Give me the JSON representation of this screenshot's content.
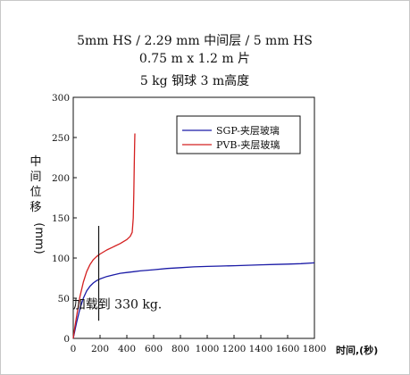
{
  "chart_data": {
    "type": "line",
    "title_lines": [
      "5mm HS / 2.29 mm 中间层 / 5 mm HS",
      "0.75 m x 1.2 m  片",
      "5 kg 钢球 3 m高度"
    ],
    "xlabel": "时间,(秒)",
    "ylabel_chars": [
      "中",
      "间",
      "位",
      "移"
    ],
    "ylabel_unit": "(mm)",
    "xlim": [
      0,
      1800
    ],
    "ylim": [
      0,
      300
    ],
    "x_ticks": [
      0,
      200,
      400,
      600,
      800,
      1000,
      1200,
      1400,
      1600,
      1800
    ],
    "y_ticks": [
      0,
      50,
      100,
      150,
      200,
      250,
      300
    ],
    "grid": false,
    "legend_position": "top-right",
    "series": [
      {
        "name": "SGP-夹层玻璃",
        "color": "#1a1aa6",
        "x": [
          0,
          10,
          25,
          50,
          75,
          100,
          125,
          150,
          175,
          200,
          250,
          300,
          350,
          400,
          450,
          500,
          600,
          700,
          800,
          900,
          1000,
          1100,
          1200,
          1300,
          1400,
          1500,
          1600,
          1700,
          1800
        ],
        "y": [
          0,
          8,
          20,
          37,
          50,
          59,
          65,
          69,
          72,
          74,
          77,
          79,
          81,
          82,
          83,
          84,
          85.5,
          87,
          88,
          89,
          89.5,
          90,
          90.5,
          91,
          91.5,
          92,
          92.5,
          93,
          94
        ]
      },
      {
        "name": "PVB-夹层玻璃",
        "color": "#d42020",
        "x": [
          0,
          10,
          25,
          50,
          75,
          100,
          125,
          150,
          175,
          200,
          250,
          300,
          350,
          400,
          425,
          440,
          448,
          452,
          455,
          458,
          460
        ],
        "y": [
          0,
          12,
          28,
          52,
          70,
          83,
          92,
          98,
          102,
          105,
          110,
          114,
          118,
          123,
          127,
          132,
          150,
          180,
          215,
          240,
          255
        ]
      }
    ],
    "marker_line": {
      "x": 190,
      "y_range": [
        22,
        140
      ]
    },
    "annotation": {
      "text": "加载到 330 kg.",
      "x": 330,
      "y": 37
    }
  }
}
